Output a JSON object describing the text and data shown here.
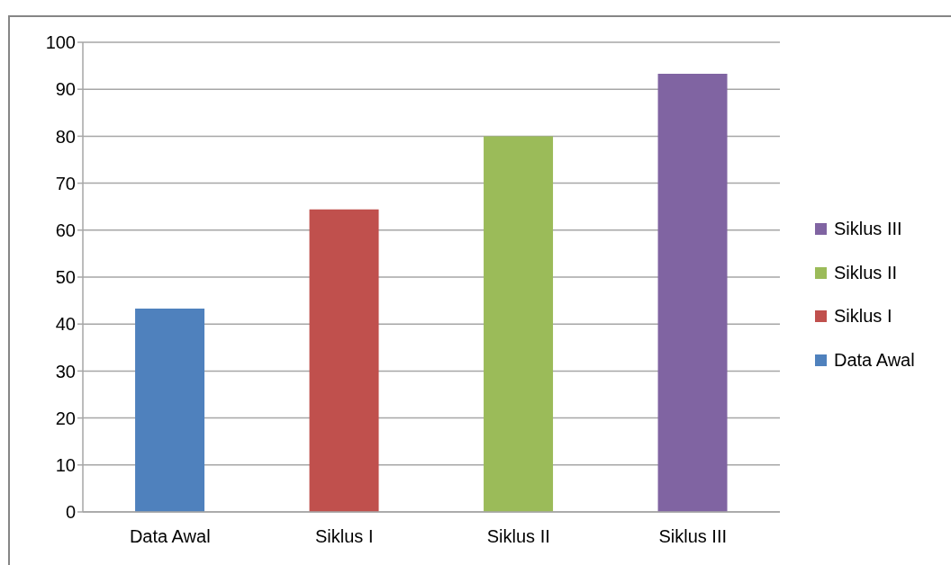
{
  "chart_data": {
    "type": "bar",
    "categories": [
      "Data Awal",
      "Siklus I",
      "Siklus II",
      "Siklus III"
    ],
    "series": [
      {
        "name": "Data Awal",
        "color": "#4f81bd",
        "values": [
          43.3,
          null,
          null,
          null
        ]
      },
      {
        "name": "Siklus I",
        "color": "#c0504d",
        "values": [
          null,
          64.4,
          null,
          null
        ]
      },
      {
        "name": "Siklus II",
        "color": "#9bbb59",
        "values": [
          null,
          null,
          80,
          null
        ]
      },
      {
        "name": "Siklus III",
        "color": "#8064a2",
        "values": [
          null,
          null,
          null,
          93.3
        ]
      }
    ],
    "stacked": true,
    "ylim": [
      0,
      100
    ],
    "yticks": [
      0,
      10,
      20,
      30,
      40,
      50,
      60,
      70,
      80,
      90,
      100
    ],
    "grid": "y",
    "legend": "right"
  }
}
